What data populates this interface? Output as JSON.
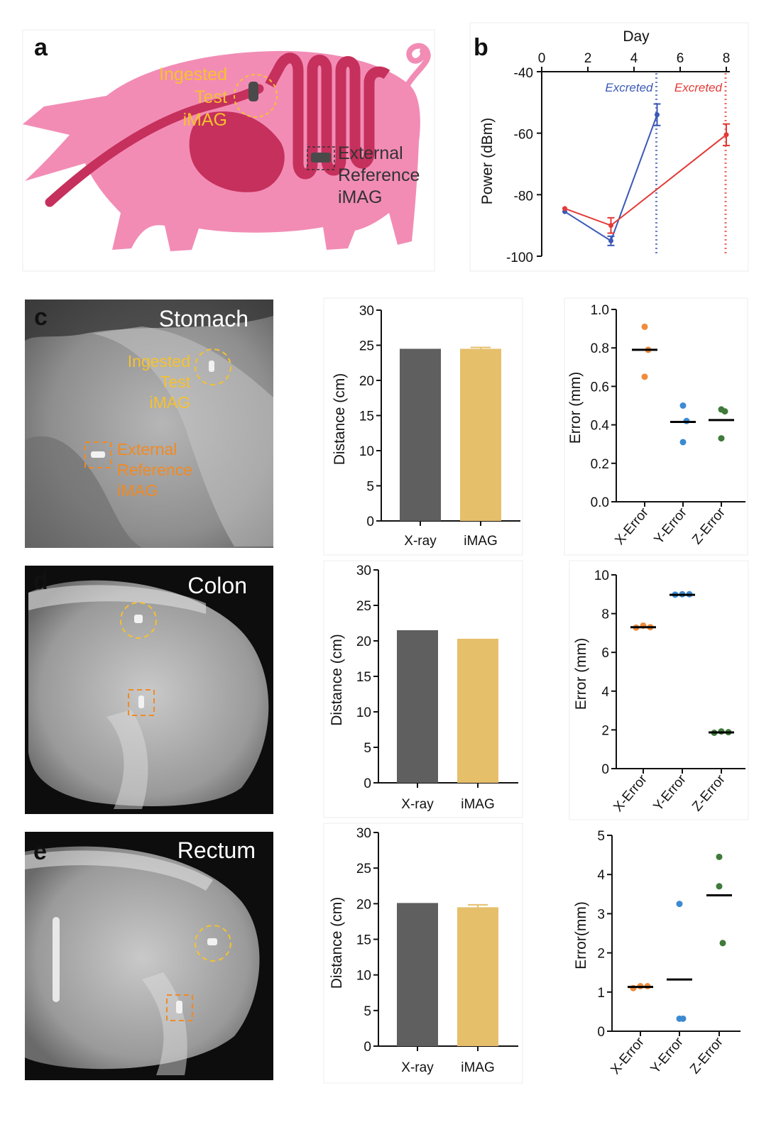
{
  "figure": {
    "panel_letters": [
      "a",
      "b",
      "c",
      "d",
      "e"
    ],
    "colors": {
      "pig_body": "#f28cb5",
      "pig_gut": "#c6305c",
      "test_label": "#f6c12f",
      "reference_label": "#f08a24",
      "xray_bar": "#5f5f5f",
      "imag_bar": "#e6bf6b",
      "series_blue": "#3b58b7",
      "series_red": "#e33a36",
      "x_error": "#ef8c3c",
      "y_error": "#3d8ad2",
      "z_error": "#3f7a3a"
    }
  },
  "panel_a": {
    "test_label": [
      "Ingested",
      "Test",
      "iMAG"
    ],
    "reference_label": [
      "External",
      "Reference",
      "iMAG"
    ]
  },
  "panel_b": {
    "chart_data": {
      "type": "line",
      "xlabel": "Day",
      "ylabel": "Power (dBm)",
      "xlim": [
        0,
        8
      ],
      "ylim": [
        -100,
        -40
      ],
      "x_ticks": [
        0,
        2,
        4,
        6,
        8
      ],
      "y_ticks": [
        -40,
        -60,
        -80,
        -100
      ],
      "series": [
        {
          "color": "#3b58b7",
          "x": [
            1,
            3,
            5
          ],
          "y": [
            -85.5,
            -95,
            -54
          ],
          "err": [
            0,
            1.5,
            3.5
          ]
        },
        {
          "color": "#e33a36",
          "x": [
            1,
            3,
            8
          ],
          "y": [
            -84.5,
            -90,
            -60.5
          ],
          "err": [
            0,
            2.5,
            3.5
          ]
        }
      ],
      "annotations": [
        {
          "text": "Excreted",
          "x": 5,
          "color": "#3b58b7"
        },
        {
          "text": "Excreted",
          "x": 8,
          "color": "#e33a36"
        }
      ]
    }
  },
  "xray_panels": [
    {
      "region": "Stomach",
      "test_label": [
        "Ingested",
        "Test",
        "iMAG"
      ],
      "reference_label": [
        "External",
        "Reference",
        "iMAG"
      ]
    },
    {
      "region": "Colon"
    },
    {
      "region": "Rectum"
    }
  ],
  "distance_charts": {
    "chart_data": [
      {
        "type": "bar",
        "categories": [
          "X-ray",
          "iMAG"
        ],
        "values": [
          24.5,
          24.5
        ],
        "errors": [
          0,
          0.2
        ],
        "ylabel": "Distance (cm)",
        "ylim": [
          0,
          30
        ],
        "y_ticks": [
          0,
          5,
          10,
          15,
          20,
          25,
          30
        ]
      },
      {
        "type": "bar",
        "categories": [
          "X-ray",
          "iMAG"
        ],
        "values": [
          21.5,
          20.3
        ],
        "errors": [
          0,
          0
        ],
        "ylabel": "Distance (cm)",
        "ylim": [
          0,
          30
        ],
        "y_ticks": [
          0,
          5,
          10,
          15,
          20,
          25,
          30
        ]
      },
      {
        "type": "bar",
        "categories": [
          "X-ray",
          "iMAG"
        ],
        "values": [
          20.1,
          19.5
        ],
        "errors": [
          0,
          0.35
        ],
        "ylabel": "Distance (cm)",
        "ylim": [
          0,
          30
        ],
        "y_ticks": [
          0,
          5,
          10,
          15,
          20,
          25,
          30
        ]
      }
    ]
  },
  "error_charts": {
    "chart_data": [
      {
        "type": "scatter",
        "categories": [
          "X-Error",
          "Y-Error",
          "Z-Error"
        ],
        "ylabel": "Error (mm)",
        "ylim": [
          0,
          1.0
        ],
        "y_ticks": [
          0.0,
          0.2,
          0.4,
          0.6,
          0.8,
          1.0
        ],
        "y_tick_labels": [
          "0.0",
          "0.2",
          "0.4",
          "0.6",
          "0.8",
          "1.0"
        ],
        "points": [
          [
            0.91,
            0.79,
            0.65
          ],
          [
            0.5,
            0.42,
            0.31
          ],
          [
            0.48,
            0.47,
            0.33
          ]
        ],
        "means": [
          0.79,
          0.415,
          0.425
        ]
      },
      {
        "type": "scatter",
        "categories": [
          "X-Error",
          "Y-Error",
          "Z-Error"
        ],
        "ylabel": "Error (mm)",
        "ylim": [
          0,
          10
        ],
        "y_ticks": [
          0,
          2,
          4,
          6,
          8,
          10
        ],
        "y_tick_labels": [
          "0",
          "2",
          "4",
          "6",
          "8",
          "10"
        ],
        "points": [
          [
            7.28,
            7.38,
            7.3
          ],
          [
            8.98,
            9.0,
            9.0
          ],
          [
            1.85,
            1.92,
            1.88
          ]
        ],
        "means": [
          7.3,
          8.97,
          1.87
        ]
      },
      {
        "type": "scatter",
        "categories": [
          "X-Error",
          "Y-Error",
          "Z-Error"
        ],
        "ylabel": "Error(mm)",
        "ylim": [
          0,
          5
        ],
        "y_ticks": [
          0,
          1,
          2,
          3,
          4,
          5
        ],
        "y_tick_labels": [
          "0",
          "1",
          "2",
          "3",
          "4",
          "5"
        ],
        "points": [
          [
            1.1,
            1.15,
            1.15
          ],
          [
            3.25,
            0.32,
            0.32
          ],
          [
            4.45,
            2.25,
            3.7
          ]
        ],
        "means": [
          1.13,
          1.32,
          3.47
        ]
      }
    ]
  }
}
